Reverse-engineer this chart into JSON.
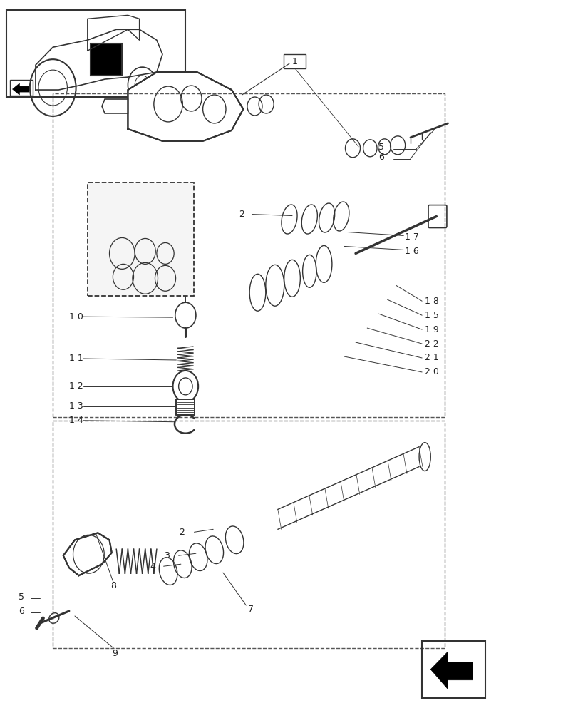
{
  "bg_color": "#ffffff",
  "line_color": "#333333",
  "dash_color": "#555555",
  "fig_width": 8.12,
  "fig_height": 10.0,
  "dpi": 100
}
